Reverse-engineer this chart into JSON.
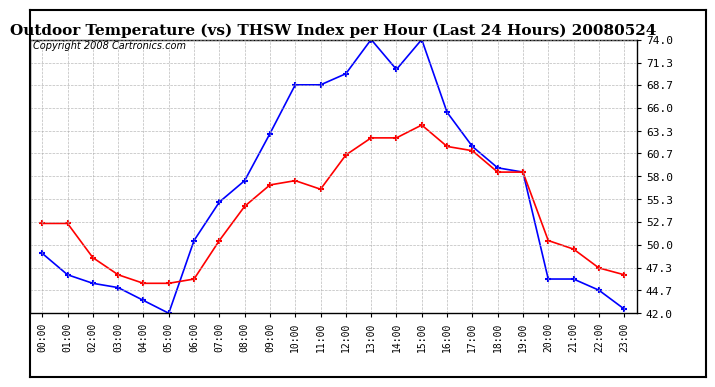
{
  "title": "Outdoor Temperature (vs) THSW Index per Hour (Last 24 Hours) 20080524",
  "copyright": "Copyright 2008 Cartronics.com",
  "hours": [
    "00:00",
    "01:00",
    "02:00",
    "03:00",
    "04:00",
    "05:00",
    "06:00",
    "07:00",
    "08:00",
    "09:00",
    "10:00",
    "11:00",
    "12:00",
    "13:00",
    "14:00",
    "15:00",
    "16:00",
    "17:00",
    "18:00",
    "19:00",
    "20:00",
    "21:00",
    "22:00",
    "23:00"
  ],
  "temp": [
    49.0,
    46.5,
    45.5,
    45.0,
    43.5,
    42.0,
    50.5,
    55.0,
    57.5,
    63.0,
    68.7,
    68.7,
    70.0,
    74.0,
    70.5,
    74.0,
    65.5,
    61.5,
    59.0,
    58.5,
    46.0,
    46.0,
    44.7,
    42.5
  ],
  "thsw": [
    52.5,
    52.5,
    48.5,
    46.5,
    45.5,
    45.5,
    46.0,
    50.5,
    54.5,
    57.0,
    57.5,
    56.5,
    60.5,
    62.5,
    62.5,
    64.0,
    61.5,
    61.0,
    58.5,
    58.5,
    50.5,
    49.5,
    47.3,
    46.5
  ],
  "temp_color": "#0000FF",
  "thsw_color": "#FF0000",
  "bg_color": "#FFFFFF",
  "grid_color": "#AAAAAA",
  "ylim": [
    42.0,
    74.0
  ],
  "yticks": [
    42.0,
    44.7,
    47.3,
    50.0,
    52.7,
    55.3,
    58.0,
    60.7,
    63.3,
    66.0,
    68.7,
    71.3,
    74.0
  ]
}
